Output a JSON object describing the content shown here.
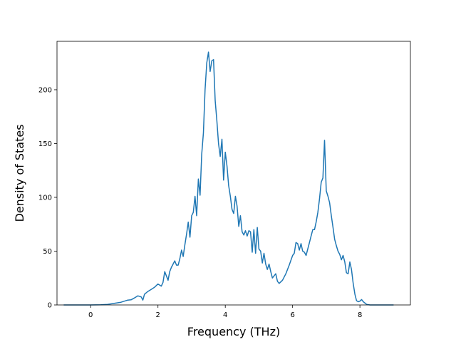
{
  "chart_data": {
    "type": "line",
    "title": "",
    "xlabel": "Frequency (THz)",
    "ylabel": "Density of States",
    "xlim": [
      -1.0,
      9.5
    ],
    "ylim": [
      0,
      245
    ],
    "xticks": [
      0,
      2,
      4,
      6,
      8
    ],
    "yticks": [
      0,
      50,
      100,
      150,
      200
    ],
    "grid": false,
    "legend": "none",
    "series": [
      {
        "color": "#1f77b4",
        "x": [
          -0.8,
          -0.5,
          0.0,
          0.3,
          0.5,
          0.7,
          0.9,
          1.0,
          1.1,
          1.2,
          1.3,
          1.4,
          1.5,
          1.55,
          1.6,
          1.7,
          1.8,
          1.9,
          2.0,
          2.1,
          2.15,
          2.2,
          2.3,
          2.35,
          2.4,
          2.5,
          2.55,
          2.6,
          2.65,
          2.7,
          2.75,
          2.8,
          2.85,
          2.9,
          2.95,
          3.0,
          3.05,
          3.1,
          3.15,
          3.2,
          3.25,
          3.3,
          3.35,
          3.4,
          3.45,
          3.5,
          3.55,
          3.6,
          3.65,
          3.7,
          3.75,
          3.8,
          3.85,
          3.9,
          3.95,
          4.0,
          4.05,
          4.1,
          4.15,
          4.2,
          4.25,
          4.3,
          4.35,
          4.4,
          4.45,
          4.5,
          4.55,
          4.6,
          4.65,
          4.7,
          4.75,
          4.8,
          4.85,
          4.9,
          4.95,
          5.0,
          5.05,
          5.1,
          5.15,
          5.2,
          5.25,
          5.3,
          5.35,
          5.4,
          5.5,
          5.55,
          5.6,
          5.7,
          5.8,
          5.9,
          6.0,
          6.05,
          6.1,
          6.15,
          6.2,
          6.25,
          6.3,
          6.35,
          6.4,
          6.5,
          6.55,
          6.6,
          6.65,
          6.7,
          6.75,
          6.8,
          6.85,
          6.9,
          6.95,
          7.0,
          7.05,
          7.1,
          7.15,
          7.2,
          7.25,
          7.3,
          7.35,
          7.4,
          7.45,
          7.5,
          7.55,
          7.6,
          7.65,
          7.7,
          7.75,
          7.8,
          7.85,
          7.9,
          7.95,
          8.0,
          8.05,
          8.1,
          8.2,
          8.3,
          8.5,
          9.0
        ],
        "values": [
          0,
          0,
          0,
          0.2,
          0.5,
          1.5,
          2.5,
          3.5,
          4.5,
          4.8,
          6.5,
          8.5,
          7.5,
          4.5,
          10,
          12.5,
          14.5,
          16.5,
          19.5,
          17.5,
          21,
          31,
          23,
          31,
          35,
          41,
          37,
          37,
          43,
          51,
          45,
          56,
          66,
          77,
          63,
          83,
          86,
          101,
          83,
          117,
          102,
          140,
          160,
          200,
          225,
          235,
          217,
          227,
          228,
          190,
          171,
          150,
          138,
          154,
          116,
          142,
          129,
          111,
          101,
          89,
          85,
          101,
          92,
          73,
          83,
          68,
          65,
          69,
          64,
          69,
          68,
          49,
          70,
          48,
          72,
          52,
          50,
          39,
          48,
          38,
          33,
          38,
          31,
          25,
          29,
          22,
          20,
          23,
          29,
          37,
          46,
          48,
          58,
          57,
          51,
          57,
          50,
          49,
          46,
          58,
          64,
          70,
          70,
          77,
          86,
          99,
          114,
          118,
          153,
          106,
          101,
          95,
          83,
          72,
          61,
          55,
          50,
          47,
          42,
          46,
          40,
          30,
          29,
          40,
          33,
          20,
          10,
          4,
          3,
          3.5,
          5,
          3,
          0.5,
          0,
          0,
          0
        ]
      }
    ]
  }
}
